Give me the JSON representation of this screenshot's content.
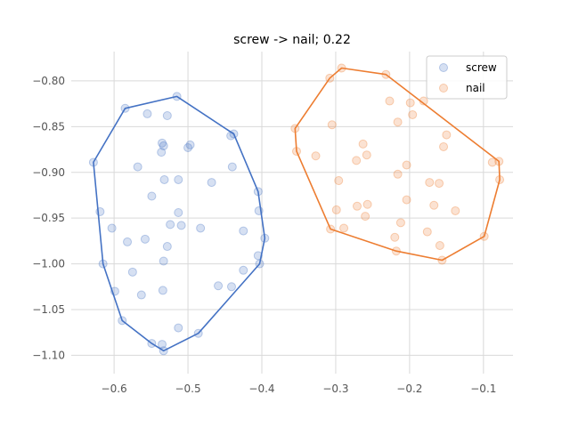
{
  "chart_data": {
    "type": "scatter",
    "title": "screw -> nail; 0.22",
    "xlabel": "",
    "ylabel": "",
    "xlim": [
      -0.658,
      -0.06
    ],
    "ylim": [
      -1.12,
      -0.768
    ],
    "xticks": [
      -0.6,
      -0.5,
      -0.4,
      -0.3,
      -0.2,
      -0.1
    ],
    "xtick_labels": [
      "−0.6",
      "−0.5",
      "−0.4",
      "−0.3",
      "−0.2",
      "−0.1"
    ],
    "yticks": [
      -0.8,
      -0.85,
      -0.9,
      -0.95,
      -1.0,
      -1.05,
      -1.1
    ],
    "ytick_labels": [
      "−0.80",
      "−0.85",
      "−0.90",
      "−0.95",
      "−1.00",
      "−1.05",
      "−1.10"
    ],
    "grid": true,
    "legend_position": "top-right",
    "series": [
      {
        "name": "screw",
        "color": "#4472c4",
        "points": [
          [
            -0.515,
            -0.817
          ],
          [
            -0.585,
            -0.83
          ],
          [
            -0.555,
            -0.836
          ],
          [
            -0.528,
            -0.838
          ],
          [
            -0.438,
            -0.858
          ],
          [
            -0.442,
            -0.86
          ],
          [
            -0.535,
            -0.868
          ],
          [
            -0.533,
            -0.871
          ],
          [
            -0.497,
            -0.87
          ],
          [
            -0.5,
            -0.873
          ],
          [
            -0.536,
            -0.878
          ],
          [
            -0.628,
            -0.889
          ],
          [
            -0.568,
            -0.894
          ],
          [
            -0.44,
            -0.894
          ],
          [
            -0.532,
            -0.908
          ],
          [
            -0.513,
            -0.908
          ],
          [
            -0.468,
            -0.911
          ],
          [
            -0.405,
            -0.921
          ],
          [
            -0.549,
            -0.926
          ],
          [
            -0.404,
            -0.942
          ],
          [
            -0.619,
            -0.943
          ],
          [
            -0.513,
            -0.944
          ],
          [
            -0.524,
            -0.957
          ],
          [
            -0.509,
            -0.958
          ],
          [
            -0.603,
            -0.961
          ],
          [
            -0.483,
            -0.961
          ],
          [
            -0.425,
            -0.964
          ],
          [
            -0.396,
            -0.972
          ],
          [
            -0.582,
            -0.976
          ],
          [
            -0.558,
            -0.973
          ],
          [
            -0.528,
            -0.981
          ],
          [
            -0.405,
            -0.991
          ],
          [
            -0.533,
            -0.997
          ],
          [
            -0.615,
            -1.0
          ],
          [
            -0.403,
            -1.0
          ],
          [
            -0.425,
            -1.007
          ],
          [
            -0.575,
            -1.009
          ],
          [
            -0.459,
            -1.024
          ],
          [
            -0.441,
            -1.025
          ],
          [
            -0.534,
            -1.029
          ],
          [
            -0.599,
            -1.03
          ],
          [
            -0.563,
            -1.034
          ],
          [
            -0.589,
            -1.062
          ],
          [
            -0.513,
            -1.07
          ],
          [
            -0.486,
            -1.076
          ],
          [
            -0.549,
            -1.087
          ],
          [
            -0.535,
            -1.088
          ],
          [
            -0.533,
            -1.095
          ]
        ],
        "hull": [
          [
            -0.515,
            -0.817
          ],
          [
            -0.438,
            -0.858
          ],
          [
            -0.405,
            -0.921
          ],
          [
            -0.396,
            -0.972
          ],
          [
            -0.403,
            -1.0
          ],
          [
            -0.486,
            -1.076
          ],
          [
            -0.533,
            -1.095
          ],
          [
            -0.549,
            -1.087
          ],
          [
            -0.589,
            -1.062
          ],
          [
            -0.615,
            -1.0
          ],
          [
            -0.628,
            -0.889
          ],
          [
            -0.585,
            -0.83
          ]
        ]
      },
      {
        "name": "nail",
        "color": "#ed7d31",
        "points": [
          [
            -0.292,
            -0.786
          ],
          [
            -0.308,
            -0.797
          ],
          [
            -0.232,
            -0.793
          ],
          [
            -0.227,
            -0.822
          ],
          [
            -0.199,
            -0.824
          ],
          [
            -0.181,
            -0.822
          ],
          [
            -0.196,
            -0.837
          ],
          [
            -0.216,
            -0.845
          ],
          [
            -0.305,
            -0.848
          ],
          [
            -0.355,
            -0.852
          ],
          [
            -0.15,
            -0.859
          ],
          [
            -0.263,
            -0.869
          ],
          [
            -0.154,
            -0.872
          ],
          [
            -0.353,
            -0.877
          ],
          [
            -0.327,
            -0.882
          ],
          [
            -0.258,
            -0.881
          ],
          [
            -0.272,
            -0.887
          ],
          [
            -0.088,
            -0.889
          ],
          [
            -0.079,
            -0.888
          ],
          [
            -0.204,
            -0.892
          ],
          [
            -0.216,
            -0.902
          ],
          [
            -0.296,
            -0.909
          ],
          [
            -0.078,
            -0.908
          ],
          [
            -0.173,
            -0.911
          ],
          [
            -0.16,
            -0.912
          ],
          [
            -0.204,
            -0.93
          ],
          [
            -0.167,
            -0.936
          ],
          [
            -0.257,
            -0.935
          ],
          [
            -0.271,
            -0.937
          ],
          [
            -0.138,
            -0.942
          ],
          [
            -0.299,
            -0.941
          ],
          [
            -0.26,
            -0.948
          ],
          [
            -0.212,
            -0.955
          ],
          [
            -0.307,
            -0.962
          ],
          [
            -0.289,
            -0.961
          ],
          [
            -0.176,
            -0.965
          ],
          [
            -0.22,
            -0.971
          ],
          [
            -0.099,
            -0.97
          ],
          [
            -0.159,
            -0.98
          ],
          [
            -0.218,
            -0.986
          ],
          [
            -0.156,
            -0.996
          ]
        ],
        "hull": [
          [
            -0.292,
            -0.786
          ],
          [
            -0.232,
            -0.793
          ],
          [
            -0.079,
            -0.888
          ],
          [
            -0.078,
            -0.908
          ],
          [
            -0.099,
            -0.97
          ],
          [
            -0.156,
            -0.996
          ],
          [
            -0.218,
            -0.986
          ],
          [
            -0.307,
            -0.962
          ],
          [
            -0.353,
            -0.877
          ],
          [
            -0.355,
            -0.852
          ],
          [
            -0.308,
            -0.797
          ]
        ]
      }
    ]
  }
}
